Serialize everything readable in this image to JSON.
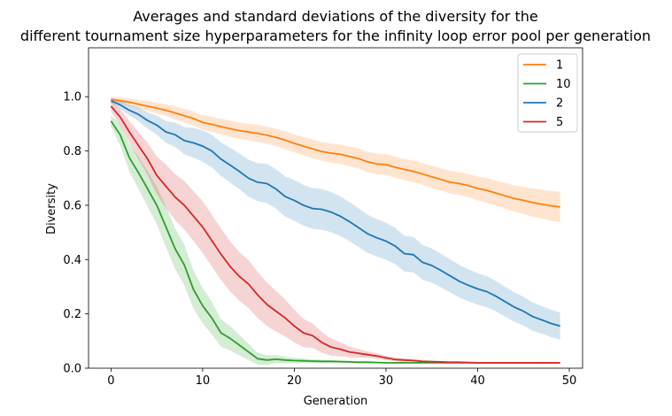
{
  "chart_data": {
    "type": "line",
    "title_line1": "Averages and standard deviations of the diversity for the",
    "title_line2": "different tournament size hyperparameters for the infinity loop error pool per generation",
    "xlabel": "Generation",
    "ylabel": "Diversity",
    "xlim": [
      -2.45,
      51.45
    ],
    "ylim": [
      0,
      1.18
    ],
    "xticks": [
      0,
      10,
      20,
      30,
      40,
      50
    ],
    "yticks": [
      0.0,
      0.2,
      0.4,
      0.6,
      0.8,
      1.0
    ],
    "grid": false,
    "legend_position": "top-right",
    "x": [
      0,
      1,
      2,
      3,
      4,
      5,
      6,
      7,
      8,
      9,
      10,
      11,
      12,
      13,
      14,
      15,
      16,
      17,
      18,
      19,
      20,
      21,
      22,
      23,
      24,
      25,
      26,
      27,
      28,
      29,
      30,
      31,
      32,
      33,
      34,
      35,
      36,
      37,
      38,
      39,
      40,
      41,
      42,
      43,
      44,
      45,
      46,
      47,
      48,
      49
    ],
    "series": [
      {
        "name": "1",
        "color": "#ff7f0e",
        "mean": [
          0.99,
          0.985,
          0.98,
          0.972,
          0.965,
          0.958,
          0.95,
          0.94,
          0.93,
          0.92,
          0.905,
          0.898,
          0.89,
          0.882,
          0.875,
          0.87,
          0.865,
          0.858,
          0.85,
          0.84,
          0.828,
          0.818,
          0.808,
          0.798,
          0.792,
          0.788,
          0.78,
          0.772,
          0.76,
          0.752,
          0.75,
          0.74,
          0.732,
          0.725,
          0.715,
          0.705,
          0.695,
          0.685,
          0.68,
          0.672,
          0.662,
          0.655,
          0.645,
          0.635,
          0.625,
          0.618,
          0.61,
          0.604,
          0.598,
          0.594
        ],
        "std": [
          0.01,
          0.012,
          0.014,
          0.016,
          0.018,
          0.02,
          0.022,
          0.024,
          0.025,
          0.026,
          0.027,
          0.028,
          0.029,
          0.03,
          0.03,
          0.03,
          0.031,
          0.032,
          0.032,
          0.033,
          0.033,
          0.034,
          0.034,
          0.035,
          0.035,
          0.036,
          0.036,
          0.037,
          0.037,
          0.038,
          0.038,
          0.039,
          0.039,
          0.04,
          0.04,
          0.041,
          0.041,
          0.042,
          0.042,
          0.043,
          0.044,
          0.045,
          0.046,
          0.047,
          0.048,
          0.05,
          0.052,
          0.053,
          0.055,
          0.056
        ]
      },
      {
        "name": "10",
        "color": "#2ca02c",
        "mean": [
          0.91,
          0.86,
          0.775,
          0.72,
          0.66,
          0.6,
          0.52,
          0.44,
          0.38,
          0.29,
          0.23,
          0.185,
          0.13,
          0.11,
          0.085,
          0.06,
          0.035,
          0.03,
          0.033,
          0.03,
          0.028,
          0.027,
          0.026,
          0.025,
          0.025,
          0.024,
          0.023,
          0.022,
          0.022,
          0.021,
          0.02,
          0.02,
          0.02,
          0.02,
          0.02,
          0.02,
          0.02,
          0.02,
          0.02,
          0.02,
          0.02,
          0.02,
          0.02,
          0.02,
          0.02,
          0.02,
          0.02,
          0.02,
          0.02,
          0.02
        ],
        "std": [
          0.02,
          0.04,
          0.05,
          0.06,
          0.065,
          0.07,
          0.075,
          0.075,
          0.075,
          0.07,
          0.065,
          0.06,
          0.05,
          0.045,
          0.038,
          0.03,
          0.022,
          0.018,
          0.015,
          0.012,
          0.01,
          0.008,
          0.007,
          0.006,
          0.005,
          0.005,
          0.004,
          0.004,
          0.004,
          0.003,
          0.003,
          0.003,
          0.003,
          0.002,
          0.002,
          0.002,
          0.002,
          0.002,
          0.002,
          0.002,
          0.002,
          0.002,
          0.002,
          0.002,
          0.002,
          0.002,
          0.002,
          0.002,
          0.002,
          0.002
        ]
      },
      {
        "name": "2",
        "color": "#1f77b4",
        "mean": [
          0.985,
          0.97,
          0.95,
          0.935,
          0.912,
          0.895,
          0.87,
          0.86,
          0.838,
          0.83,
          0.818,
          0.8,
          0.77,
          0.748,
          0.725,
          0.7,
          0.685,
          0.68,
          0.66,
          0.632,
          0.618,
          0.6,
          0.588,
          0.585,
          0.575,
          0.56,
          0.54,
          0.518,
          0.495,
          0.48,
          0.468,
          0.45,
          0.422,
          0.418,
          0.39,
          0.378,
          0.36,
          0.34,
          0.32,
          0.305,
          0.292,
          0.282,
          0.265,
          0.245,
          0.225,
          0.21,
          0.19,
          0.178,
          0.165,
          0.155
        ],
        "std": [
          0.01,
          0.015,
          0.02,
          0.025,
          0.03,
          0.035,
          0.04,
          0.045,
          0.05,
          0.055,
          0.058,
          0.06,
          0.062,
          0.064,
          0.066,
          0.068,
          0.07,
          0.072,
          0.073,
          0.074,
          0.075,
          0.075,
          0.075,
          0.075,
          0.074,
          0.073,
          0.072,
          0.071,
          0.07,
          0.069,
          0.068,
          0.067,
          0.066,
          0.065,
          0.064,
          0.063,
          0.062,
          0.061,
          0.06,
          0.059,
          0.058,
          0.057,
          0.056,
          0.055,
          0.054,
          0.053,
          0.052,
          0.051,
          0.05,
          0.05
        ]
      },
      {
        "name": "5",
        "color": "#d62728",
        "mean": [
          0.965,
          0.925,
          0.87,
          0.82,
          0.77,
          0.71,
          0.67,
          0.63,
          0.6,
          0.56,
          0.52,
          0.47,
          0.42,
          0.375,
          0.338,
          0.31,
          0.27,
          0.235,
          0.21,
          0.185,
          0.155,
          0.13,
          0.12,
          0.095,
          0.078,
          0.07,
          0.06,
          0.055,
          0.05,
          0.045,
          0.038,
          0.032,
          0.03,
          0.028,
          0.025,
          0.024,
          0.023,
          0.022,
          0.022,
          0.021,
          0.02,
          0.02,
          0.02,
          0.02,
          0.02,
          0.02,
          0.02,
          0.02,
          0.02,
          0.02
        ],
        "std": [
          0.02,
          0.03,
          0.04,
          0.05,
          0.06,
          0.07,
          0.08,
          0.085,
          0.09,
          0.092,
          0.095,
          0.095,
          0.095,
          0.092,
          0.09,
          0.088,
          0.085,
          0.08,
          0.075,
          0.068,
          0.06,
          0.052,
          0.045,
          0.038,
          0.032,
          0.026,
          0.02,
          0.016,
          0.012,
          0.01,
          0.008,
          0.007,
          0.006,
          0.005,
          0.005,
          0.004,
          0.004,
          0.003,
          0.003,
          0.003,
          0.002,
          0.002,
          0.002,
          0.002,
          0.002,
          0.002,
          0.002,
          0.002,
          0.002,
          0.002
        ]
      }
    ]
  }
}
